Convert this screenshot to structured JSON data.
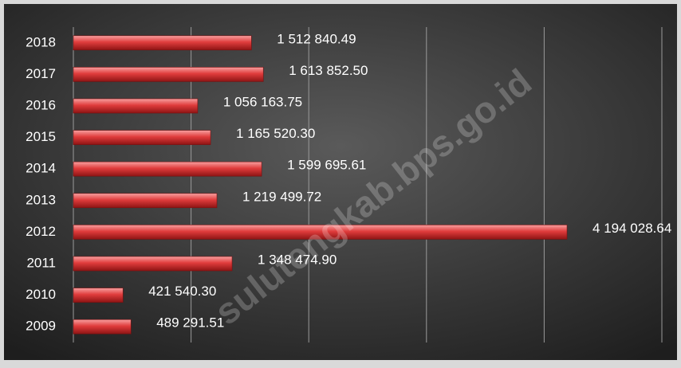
{
  "chart_data": {
    "type": "bar",
    "orientation": "horizontal",
    "categories": [
      "2018",
      "2017",
      "2016",
      "2015",
      "2014",
      "2013",
      "2012",
      "2011",
      "2010",
      "2009"
    ],
    "values": [
      1512840.49,
      1613852.5,
      1056163.75,
      1165520.3,
      1599695.61,
      1219499.72,
      4194028.64,
      1348474.9,
      421540.3,
      489291.51
    ],
    "value_labels": [
      "1 512 840.49",
      "1 613 852.50",
      "1 056 163.75",
      "1 165 520.30",
      "1 599 695.61",
      "1 219 499.72",
      "4 194 028.64",
      "1 348 474.90",
      "421 540.30",
      "489 291.51"
    ],
    "color": "#e03c3c",
    "xlim": [
      0,
      5000000
    ],
    "xticks": [
      0,
      1000000,
      2000000,
      3000000,
      4000000,
      5000000
    ],
    "grid": true,
    "watermark": "sulutengkab.bps.go.id"
  }
}
